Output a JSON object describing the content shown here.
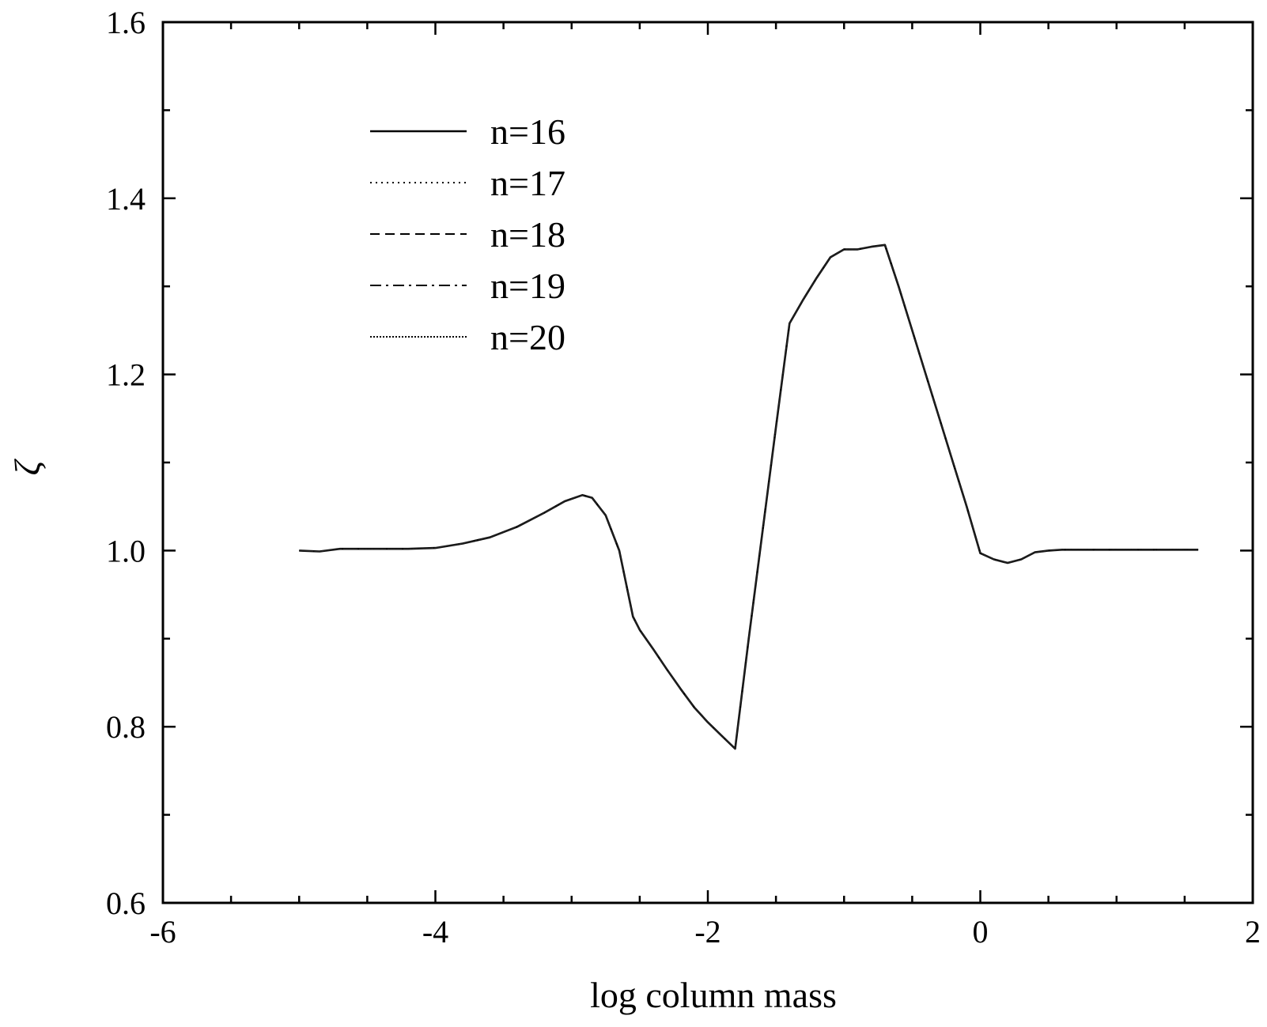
{
  "chart_data": {
    "type": "line",
    "xlabel": "log column mass",
    "ylabel": "ζ",
    "xlim": [
      -6,
      2
    ],
    "ylim": [
      0.6,
      1.6
    ],
    "x_ticks": [
      -6,
      -4,
      -2,
      0,
      2
    ],
    "y_ticks": [
      0.6,
      0.8,
      1.0,
      1.2,
      1.4,
      1.6
    ],
    "x_tick_labels": [
      "-6",
      "-4",
      "-2",
      "0",
      "2"
    ],
    "y_tick_labels": [
      "0.6",
      "0.8",
      "1.0",
      "1.2",
      "1.4",
      "1.6"
    ],
    "grid": false,
    "legend_position": "top-left",
    "series": [
      {
        "name": "n=16",
        "dash": "solid",
        "x": [
          -5.0,
          -4.85,
          -4.7,
          -4.5,
          -4.2,
          -4.0,
          -3.8,
          -3.6,
          -3.4,
          -3.2,
          -3.05,
          -2.92,
          -2.85,
          -2.75,
          -2.65,
          -2.55,
          -2.5,
          -2.4,
          -2.3,
          -2.2,
          -2.1,
          -2.0,
          -1.9,
          -1.8,
          -1.7,
          -1.6,
          -1.5,
          -1.4,
          -1.3,
          -1.2,
          -1.1,
          -1.0,
          -0.9,
          -0.8,
          -0.7,
          -0.6,
          -0.5,
          -0.4,
          -0.3,
          -0.2,
          -0.1,
          0.0,
          0.1,
          0.2,
          0.3,
          0.4,
          0.5,
          0.6,
          0.7,
          0.8,
          0.9,
          1.0,
          1.1,
          1.2,
          1.3,
          1.4,
          1.5,
          1.6
        ],
        "y": [
          1.0,
          0.999,
          1.002,
          1.002,
          1.002,
          1.003,
          1.008,
          1.015,
          1.027,
          1.043,
          1.056,
          1.063,
          1.06,
          1.04,
          1.0,
          0.925,
          0.91,
          0.888,
          0.865,
          0.843,
          0.822,
          0.805,
          0.79,
          0.775,
          0.9,
          1.02,
          1.14,
          1.258,
          1.285,
          1.31,
          1.333,
          1.342,
          1.342,
          1.345,
          1.347,
          1.3,
          1.25,
          1.2,
          1.15,
          1.1,
          1.05,
          0.997,
          0.99,
          0.986,
          0.99,
          0.998,
          1.0,
          1.001,
          1.001,
          1.001,
          1.001,
          1.001,
          1.001,
          1.001,
          1.001,
          1.001,
          1.001,
          1.001
        ]
      },
      {
        "name": "n=17",
        "dash": "dotted"
      },
      {
        "name": "n=18",
        "dash": "dashed"
      },
      {
        "name": "n=19",
        "dash": "dashdot"
      },
      {
        "name": "n=20",
        "dash": "densedot"
      }
    ]
  }
}
